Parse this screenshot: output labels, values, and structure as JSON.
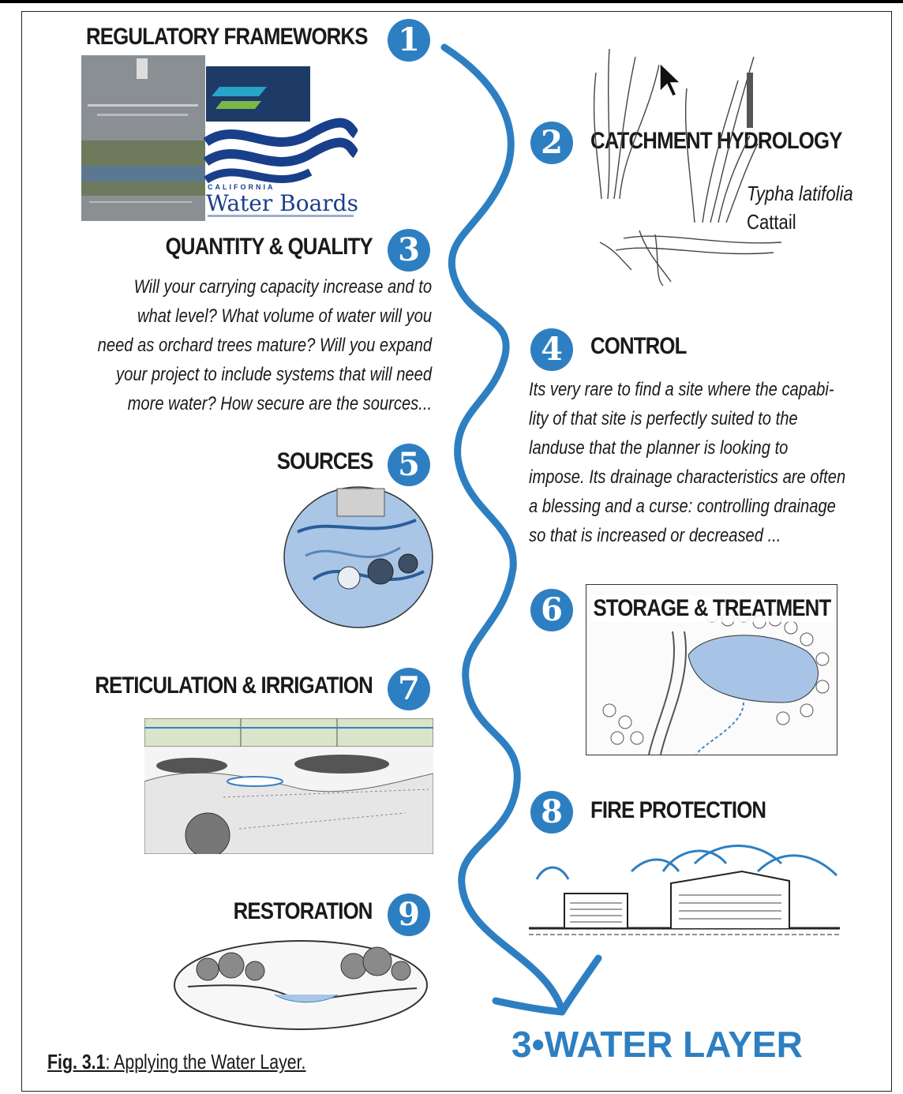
{
  "sections": [
    {
      "number": "1",
      "title": "REGULATORY FRAMEWORKS"
    },
    {
      "number": "2",
      "title": "CATCHMENT HYDROLOGY"
    },
    {
      "number": "3",
      "title": "QUANTITY & QUALITY",
      "body": [
        "Will your carrying capacity increase and to",
        "what level? What volume of water will you",
        "need as orchard trees mature? Will you expand",
        "your project to include systems that will need",
        "more water? How secure are the sources..."
      ]
    },
    {
      "number": "4",
      "title": "CONTROL",
      "body": [
        "Its very rare to find a site where the capabi-",
        "lity of that site is perfectly suited to the",
        "landuse that the planner is looking to",
        "impose. Its drainage characteristics are often",
        "a blessing and a curse: controlling drainage",
        "so that is increased or decreased ..."
      ]
    },
    {
      "number": "5",
      "title": "SOURCES"
    },
    {
      "number": "6",
      "title": "STORAGE & TREATMENT"
    },
    {
      "number": "7",
      "title": "RETICULATION & IRRIGATION"
    },
    {
      "number": "8",
      "title": "FIRE PROTECTION"
    },
    {
      "number": "9",
      "title": "RESTORATION"
    }
  ],
  "water_boards": {
    "small": "CALIFORNIA",
    "name": "Water Boards"
  },
  "plant": {
    "species": "Typha latifolia",
    "common": "Cattail"
  },
  "caption": {
    "label": "Fig. 3.1",
    "text": ": Applying the Water Layer."
  },
  "layer_title": "3•WATER LAYER",
  "colors": {
    "accent": "#2e7fc1",
    "text": "#1a1a1a"
  },
  "icons": {
    "cursor": "cursor-arrow-icon"
  }
}
